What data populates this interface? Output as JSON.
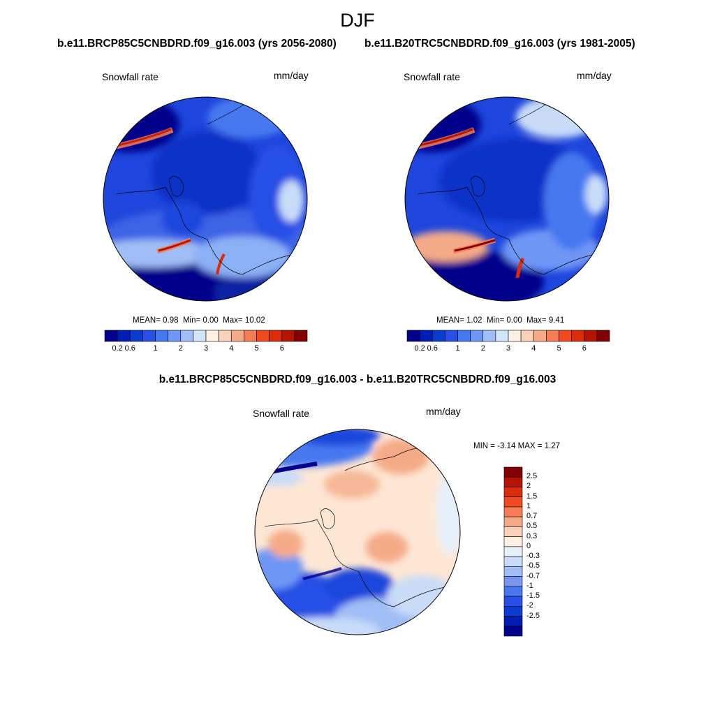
{
  "season_title": "DJF",
  "panels": [
    {
      "id": "future",
      "header": "b.e11.BRCP85C5CNBDRD.f09_g16.003 (yrs 2056-2080)",
      "variable": "Snowfall rate",
      "units": "mm/day",
      "stats": {
        "mean_label": "MEAN=",
        "mean": "0.98",
        "min_label": "Min=",
        "min": "0.00",
        "max_label": "Max=",
        "max": "10.02"
      }
    },
    {
      "id": "historical",
      "header": "b.e11.B20TRC5CNBDRD.f09_g16.003 (yrs 1981-2005)",
      "variable": "Snowfall rate",
      "units": "mm/day",
      "stats": {
        "mean_label": "MEAN=",
        "mean": "1.02",
        "min_label": "Min=",
        "min": "0.00",
        "max_label": "Max=",
        "max": "9.41"
      }
    }
  ],
  "colorbar_abs": {
    "colors": [
      "#00008c",
      "#001eb4",
      "#0a3cd2",
      "#2850e6",
      "#4678f0",
      "#6e96f5",
      "#a0bef5",
      "#d2e6fa",
      "#fff0e1",
      "#fad2b9",
      "#f5aa87",
      "#f57d55",
      "#f04b1e",
      "#dc2d0a",
      "#b41400",
      "#820000"
    ],
    "ticks": [
      {
        "label": "0.2",
        "index": 1
      },
      {
        "label": "0.6",
        "index": 2
      },
      {
        "label": "1",
        "index": 4
      },
      {
        "label": "2",
        "index": 6
      },
      {
        "label": "3",
        "index": 8
      },
      {
        "label": "4",
        "index": 10
      },
      {
        "label": "5",
        "index": 12
      },
      {
        "label": "6",
        "index": 14
      }
    ]
  },
  "difference": {
    "title": "b.e11.BRCP85C5CNBDRD.f09_g16.003 - b.e11.B20TRC5CNBDRD.f09_g16.003",
    "variable": "Snowfall rate",
    "units": "mm/day",
    "stats": {
      "min_label": "MIN =",
      "min": "-3.14",
      "max_label": "MAX =",
      "max": "1.27"
    },
    "colorbar": {
      "colors": [
        "#820000",
        "#b41400",
        "#dc2d0a",
        "#f04b1e",
        "#f57d55",
        "#f5aa87",
        "#fad2b9",
        "#fff0e1",
        "#e6f0fa",
        "#c8dcf8",
        "#a0bef5",
        "#7896f0",
        "#4678f0",
        "#2850e6",
        "#0a3cd2",
        "#001eb4",
        "#00008c"
      ],
      "labels": [
        "2.5",
        "2",
        "1.5",
        "1",
        "0.7",
        "0.5",
        "0.3",
        "0",
        "-0.3",
        "-0.5",
        "-0.7",
        "-1",
        "-1.5",
        "-2",
        "-2.5"
      ]
    }
  },
  "palette": {
    "deep_blue": "#00008c",
    "mid_blue": "#1e46dc",
    "light_blue": "#6e96f5",
    "pale_blue": "#c8dcf8",
    "peach": "#fde6d4",
    "salmon": "#f5aa87",
    "red": "#dc2d0a",
    "dark_red": "#820000"
  }
}
